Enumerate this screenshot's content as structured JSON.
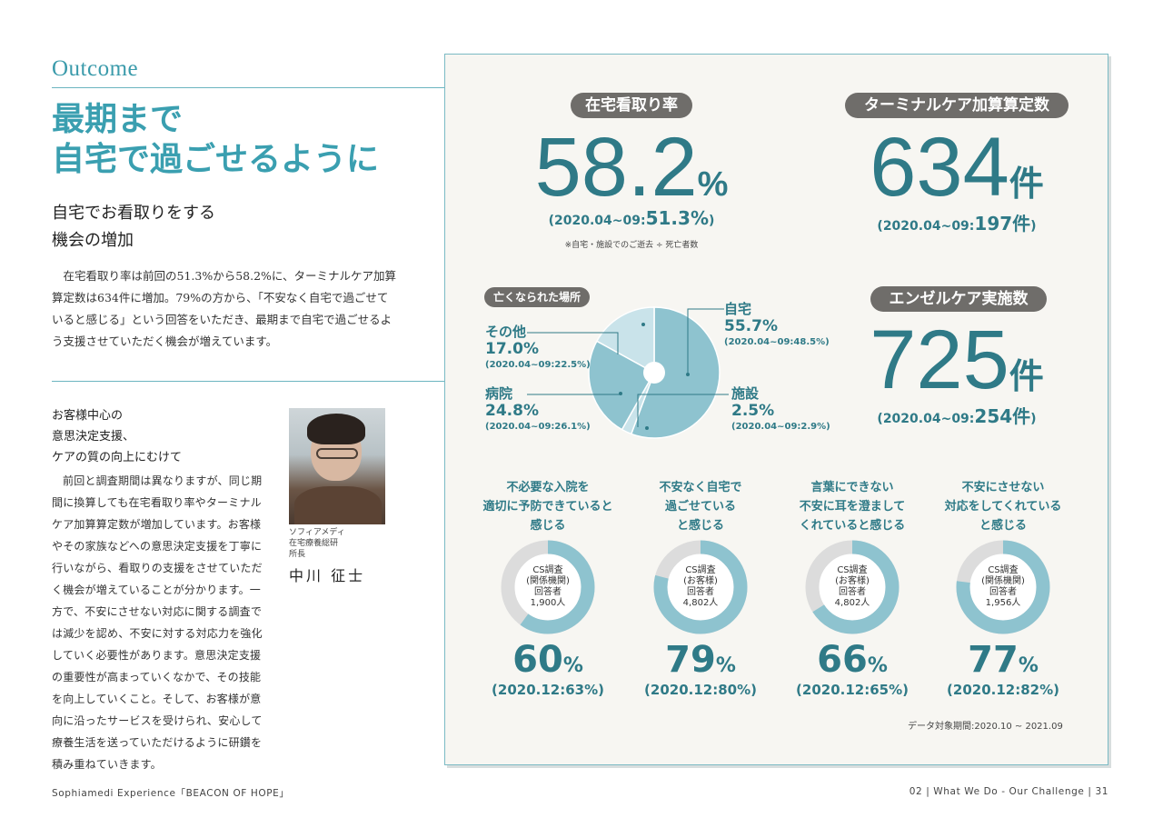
{
  "left": {
    "section_label": "Outcome",
    "headline_1": "最期まで",
    "headline_2": "自宅で過ごせるように",
    "subhead_1": "自宅でお看取りをする",
    "subhead_2": "機会の増加",
    "body1": "在宅看取り率は前回の51.3%から58.2%に、ターミナルケア加算算定数は634件に増加。79%の方から、「不安なく自宅で過ごせていると感じる」という回答をいただき、最期まで自宅で過ごせるよう支援させていただく機会が増えています。",
    "subhead2_1": "お客様中心の",
    "subhead2_2": "意思決定支援、",
    "subhead2_3": "ケアの質の向上にむけて",
    "body2": "前回と調査期間は異なりますが、同じ期間に換算しても在宅看取り率やターミナルケア加算算定数が増加しています。お客様やその家族などへの意思決定支援を丁寧に行いながら、看取りの支援をさせていただく機会が増えていることが分かります。一方で、不安にさせない対応に関する調査では減少を認め、不安に対する対応力を強化していく必要性があります。意思決定支援の重要性が高まっていくなかで、その技能を向上していくこと。そして、お客様が意向に沿ったサービスを受けられ、安心して療養生活を送っていただけるように研鑽を積み重ねていきます。",
    "caption_1": "ソフィアメディ",
    "caption_2": "在宅療養総研",
    "caption_3": "所長",
    "person_name": "中川 征士"
  },
  "footer": {
    "left": "Sophiamedi Experience「BEACON OF HOPE」",
    "right": "02 | What We Do - Our Challenge | 31"
  },
  "stats": {
    "home_rate": {
      "label": "在宅看取り率",
      "value": "58.2",
      "unit": "%",
      "prev_prefix": "(2020.04~09:",
      "prev_value": "51.3%",
      "prev_suffix": ")",
      "note": "※自宅・施設でのご逝去 ÷ 死亡者数"
    },
    "terminal": {
      "label": "ターミナルケア加算算定数",
      "value": "634",
      "unit": "件",
      "prev_prefix": "(2020.04~09:",
      "prev_value": "197件",
      "prev_suffix": ")"
    },
    "angel": {
      "label": "エンゼルケア実施数",
      "value": "725",
      "unit": "件",
      "prev_prefix": "(2020.04~09:",
      "prev_value": "254件",
      "prev_suffix": ")"
    }
  },
  "chart_data": [
    {
      "type": "pie",
      "title": "亡くなられた場所",
      "categories": [
        "自宅",
        "施設",
        "病院",
        "その他"
      ],
      "values": [
        55.7,
        2.5,
        24.8,
        17.0
      ],
      "labels": [
        "55.7%",
        "2.5%",
        "24.8%",
        "17.0%"
      ],
      "previous": [
        "(2020.04~09:48.5%)",
        "(2020.04~09:2.9%)",
        "(2020.04~09:26.1%)",
        "(2020.04~09:22.5%)"
      ],
      "colors": [
        "#8ec3cf",
        "#c9e3ea",
        "#8ec3cf",
        "#c9e3ea"
      ]
    },
    {
      "type": "pie",
      "donuts": [
        {
          "title_1": "不必要な入院を",
          "title_2": "適切に予防できていると",
          "title_3": "感じる",
          "inner_1": "CS調査",
          "inner_2": "(関係機関)",
          "inner_3": "回答者",
          "inner_4": "1,900人",
          "value": 60,
          "pct": "60",
          "prev": "(2020.12:63%)"
        },
        {
          "title_1": "不安なく自宅で",
          "title_2": "過ごせている",
          "title_3": "と感じる",
          "inner_1": "CS調査",
          "inner_2": "(お客様)",
          "inner_3": "回答者",
          "inner_4": "4,802人",
          "value": 79,
          "pct": "79",
          "prev": "(2020.12:80%)"
        },
        {
          "title_1": "言葉にできない",
          "title_2": "不安に耳を澄まして",
          "title_3": "くれていると感じる",
          "inner_1": "CS調査",
          "inner_2": "(お客様)",
          "inner_3": "回答者",
          "inner_4": "4,802人",
          "value": 66,
          "pct": "66",
          "prev": "(2020.12:65%)"
        },
        {
          "title_1": "不安にさせない",
          "title_2": "対応をしてくれている",
          "title_3": "と感じる",
          "inner_1": "CS調査",
          "inner_2": "(関係機関)",
          "inner_3": "回答者",
          "inner_4": "1,956人",
          "value": 77,
          "pct": "77",
          "prev": "(2020.12:82%)"
        }
      ],
      "percent_sign": "%"
    }
  ],
  "period": "データ対象期間:2020.10 ~ 2021.09",
  "colors": {
    "accent": "#2f7a87",
    "light_accent": "#3a9fb0",
    "pill": "#6f6d6a",
    "donut_fill": "#8ec3cf",
    "donut_track": "#dcdcdc"
  }
}
